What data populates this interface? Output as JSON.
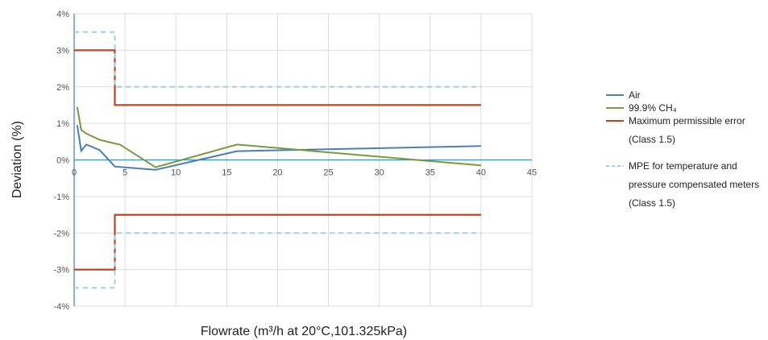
{
  "chart_data": {
    "type": "line",
    "xlabel": "Flowrate (m³/h at 20°C,101.325kPa)",
    "ylabel": "Deviation (%)",
    "xlim": [
      0,
      45
    ],
    "ylim": [
      -4,
      4
    ],
    "x_ticks": [
      "0",
      "5",
      "10",
      "15",
      "20",
      "25",
      "30",
      "35",
      "40",
      "45"
    ],
    "y_ticks": [
      "4%",
      "3%",
      "2%",
      "1%",
      "0%",
      "-1%",
      "-2%",
      "-3%",
      "-4%"
    ],
    "grid": true,
    "legend_position": "right",
    "series": [
      {
        "name": "Air",
        "color": "#4a7ebb",
        "style": "solid",
        "x": [
          0.3,
          0.7,
          1.2,
          2.5,
          4.0,
          8.0,
          16.0,
          40.0
        ],
        "y": [
          0.95,
          0.25,
          0.42,
          0.27,
          -0.18,
          -0.27,
          0.24,
          0.38
        ]
      },
      {
        "name": "99.9% CH₄",
        "color": "#7a9a3a",
        "style": "solid",
        "x": [
          0.3,
          0.7,
          1.2,
          2.5,
          4.0,
          4.5,
          8.0,
          16.0,
          40.0
        ],
        "y": [
          1.45,
          0.82,
          0.72,
          0.55,
          0.45,
          0.42,
          -0.2,
          0.42,
          -0.15
        ]
      },
      {
        "name": "Maximum permissible error (Class 1.5)",
        "legend_lines": [
          "Maximum permissible error",
          "(Class 1.5)"
        ],
        "color": "#c8401a",
        "style": "solid",
        "segments": [
          {
            "x": [
              0,
              4,
              4,
              40
            ],
            "y": [
              3,
              3,
              1.5,
              1.5
            ]
          },
          {
            "x": [
              0,
              4,
              4,
              40
            ],
            "y": [
              -3,
              -3,
              -1.5,
              -1.5
            ]
          }
        ]
      },
      {
        "name": "MPE for temperature and pressure compensated meters (Class 1.5)",
        "legend_lines": [
          "MPE for temperature and",
          "pressure compensated meters",
          "(Class 1.5)"
        ],
        "color": "#9dd3e3",
        "style": "dashed",
        "segments": [
          {
            "x": [
              0,
              4,
              4,
              40
            ],
            "y": [
              3.5,
              3.5,
              2,
              2
            ]
          },
          {
            "x": [
              0,
              4,
              4,
              40
            ],
            "y": [
              -3.5,
              -3.5,
              -2,
              -2
            ]
          }
        ]
      }
    ]
  }
}
